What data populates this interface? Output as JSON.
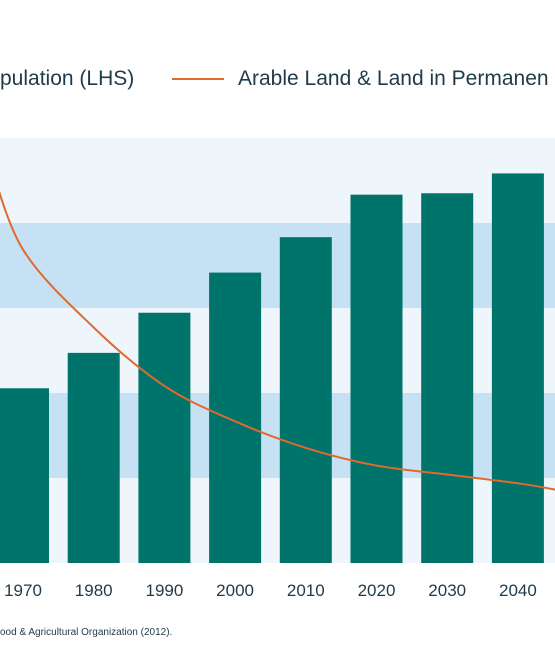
{
  "legend": {
    "bars_label": "pulation (LHS)",
    "line_label": "Arable Land & Land in Permanen"
  },
  "source": "ood & Agricultural Organization (2012).",
  "colors": {
    "bar": "#00746b",
    "line": "#e0692e",
    "plot_bg": "#eef6fc",
    "band": "#c6e1f3",
    "text": "#1f3a4a"
  },
  "chart_data": {
    "type": "bar",
    "categories": [
      "1970",
      "1980",
      "1990",
      "2000",
      "2010",
      "2020",
      "2030",
      "2040"
    ],
    "series": [
      {
        "type": "bar",
        "values": [
          3.7,
          4.45,
          5.3,
          6.15,
          6.9,
          7.8,
          7.83,
          8.25
        ]
      },
      {
        "type": "line",
        "values": [
          0.327,
          0.283,
          0.25,
          0.23,
          0.215,
          0.205,
          0.2,
          0.195
        ]
      }
    ],
    "ylim": [
      0,
      9
    ],
    "y2lim": [
      0.15,
      0.39
    ],
    "line_extends_left_to": 0.38,
    "banded_background": true,
    "legend_position": "top"
  }
}
